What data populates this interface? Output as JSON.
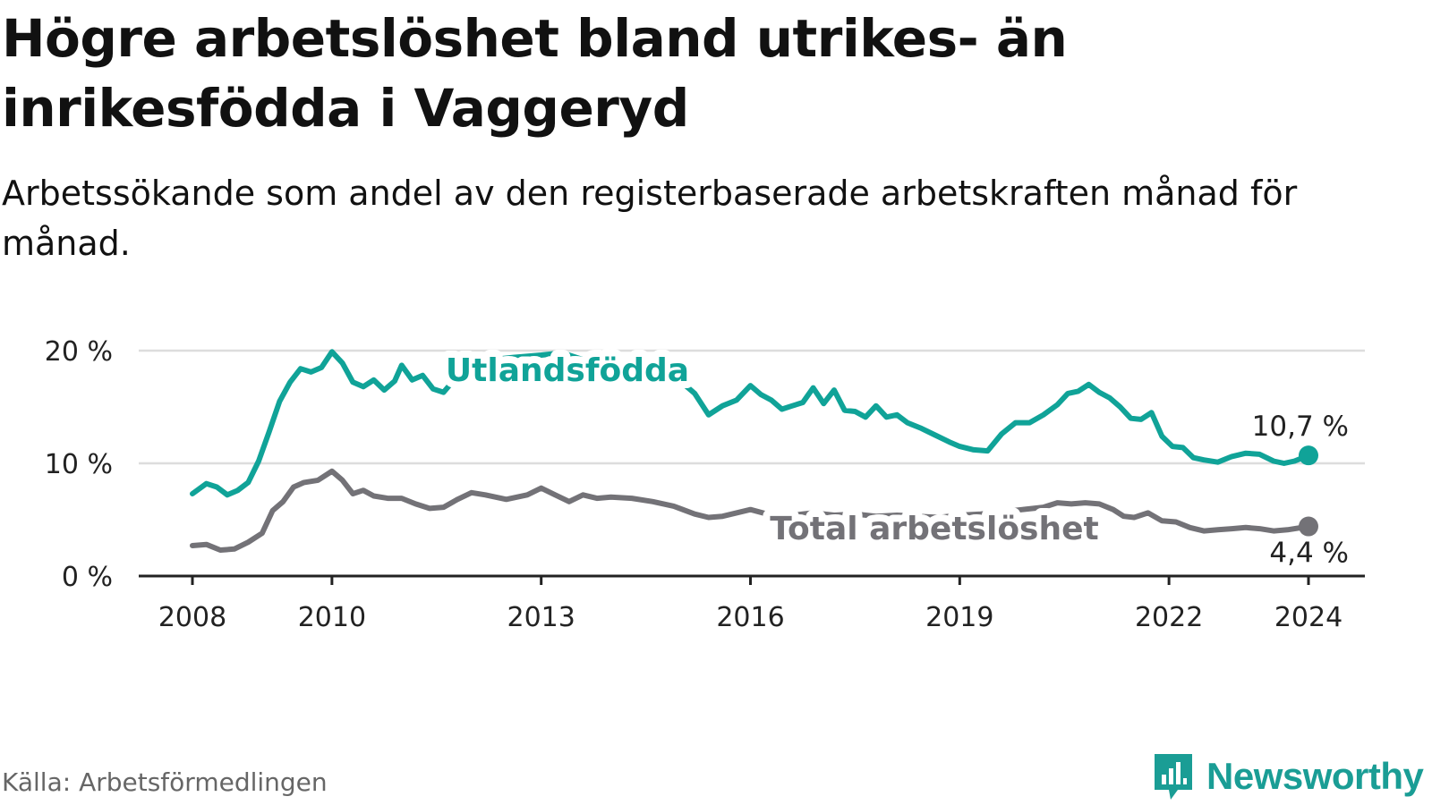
{
  "header": {
    "title": "Högre arbetslöshet bland utrikes- än inrikesfödda i Vaggeryd",
    "subtitle": "Arbetssökande som andel av den registerbaserade arbetskraften månad för månad."
  },
  "footer": {
    "source": "Källa: Arbetsförmedlingen",
    "brand": "Newsworthy"
  },
  "colors": {
    "foreign": "#10a398",
    "total": "#737277",
    "grid": "#dddddd",
    "axis": "#222222",
    "brand": "#1a9d95"
  },
  "icons": {
    "logo": "newsworthy-logo-icon"
  },
  "chart_data": {
    "type": "line",
    "title": "Högre arbetslöshet bland utrikes- än inrikesfödda i Vaggeryd",
    "xlabel": "",
    "ylabel": "",
    "xlim": [
      2008,
      2024
    ],
    "ylim": [
      0,
      20
    ],
    "x_ticks": [
      {
        "value": 2008,
        "label": "2008"
      },
      {
        "value": 2010,
        "label": "2010"
      },
      {
        "value": 2013,
        "label": "2013"
      },
      {
        "value": 2016,
        "label": "2016"
      },
      {
        "value": 2019,
        "label": "2019"
      },
      {
        "value": 2022,
        "label": "2022"
      },
      {
        "value": 2024,
        "label": "2024"
      }
    ],
    "y_ticks": [
      {
        "value": 0,
        "label": "0 %"
      },
      {
        "value": 10,
        "label": "10 %"
      },
      {
        "value": 20,
        "label": "20 %"
      }
    ],
    "grid": true,
    "legend": "inline labels",
    "series": [
      {
        "name": "Utlandsfödda",
        "color": "#10a398",
        "end_label": "10,7 %",
        "points": [
          [
            2008.0,
            7.3
          ],
          [
            2008.2,
            8.2
          ],
          [
            2008.35,
            7.9
          ],
          [
            2008.5,
            7.2
          ],
          [
            2008.65,
            7.6
          ],
          [
            2008.8,
            8.3
          ],
          [
            2008.95,
            10.2
          ],
          [
            2009.1,
            12.8
          ],
          [
            2009.25,
            15.5
          ],
          [
            2009.4,
            17.2
          ],
          [
            2009.55,
            18.4
          ],
          [
            2009.7,
            18.1
          ],
          [
            2009.85,
            18.5
          ],
          [
            2010.0,
            19.9
          ],
          [
            2010.15,
            18.9
          ],
          [
            2010.3,
            17.2
          ],
          [
            2010.45,
            16.8
          ],
          [
            2010.6,
            17.4
          ],
          [
            2010.75,
            16.5
          ],
          [
            2010.9,
            17.3
          ],
          [
            2011.0,
            18.7
          ],
          [
            2011.15,
            17.4
          ],
          [
            2011.3,
            17.8
          ],
          [
            2011.45,
            16.6
          ],
          [
            2011.6,
            16.3
          ],
          [
            2011.75,
            17.4
          ],
          [
            2012.0,
            18.5
          ],
          [
            2012.3,
            19.2
          ],
          [
            2012.6,
            19.4
          ],
          [
            2013.0,
            19.6
          ],
          [
            2013.3,
            19.8
          ],
          [
            2013.6,
            19.2
          ],
          [
            2014.0,
            19.1
          ],
          [
            2014.3,
            18.8
          ],
          [
            2014.6,
            18.5
          ],
          [
            2014.9,
            17.8
          ],
          [
            2015.2,
            16.2
          ],
          [
            2015.4,
            14.3
          ],
          [
            2015.6,
            15.1
          ],
          [
            2015.8,
            15.6
          ],
          [
            2016.0,
            16.9
          ],
          [
            2016.15,
            16.1
          ],
          [
            2016.3,
            15.6
          ],
          [
            2016.45,
            14.8
          ],
          [
            2016.6,
            15.1
          ],
          [
            2016.75,
            15.4
          ],
          [
            2016.9,
            16.7
          ],
          [
            2017.05,
            15.3
          ],
          [
            2017.2,
            16.5
          ],
          [
            2017.35,
            14.7
          ],
          [
            2017.5,
            14.6
          ],
          [
            2017.65,
            14.1
          ],
          [
            2017.8,
            15.1
          ],
          [
            2017.95,
            14.1
          ],
          [
            2018.1,
            14.3
          ],
          [
            2018.25,
            13.6
          ],
          [
            2018.45,
            13.1
          ],
          [
            2018.65,
            12.5
          ],
          [
            2018.85,
            11.9
          ],
          [
            2019.0,
            11.5
          ],
          [
            2019.2,
            11.2
          ],
          [
            2019.4,
            11.1
          ],
          [
            2019.6,
            12.6
          ],
          [
            2019.8,
            13.6
          ],
          [
            2020.0,
            13.6
          ],
          [
            2020.2,
            14.3
          ],
          [
            2020.4,
            15.2
          ],
          [
            2020.55,
            16.2
          ],
          [
            2020.7,
            16.4
          ],
          [
            2020.85,
            17.0
          ],
          [
            2021.0,
            16.3
          ],
          [
            2021.15,
            15.8
          ],
          [
            2021.3,
            15.0
          ],
          [
            2021.45,
            14.0
          ],
          [
            2021.6,
            13.9
          ],
          [
            2021.75,
            14.5
          ],
          [
            2021.9,
            12.4
          ],
          [
            2022.05,
            11.5
          ],
          [
            2022.2,
            11.4
          ],
          [
            2022.35,
            10.5
          ],
          [
            2022.5,
            10.3
          ],
          [
            2022.7,
            10.1
          ],
          [
            2022.9,
            10.6
          ],
          [
            2023.1,
            10.9
          ],
          [
            2023.3,
            10.8
          ],
          [
            2023.5,
            10.2
          ],
          [
            2023.65,
            10.0
          ],
          [
            2023.8,
            10.2
          ],
          [
            2024.0,
            10.7
          ]
        ]
      },
      {
        "name": "Total arbetslöshet",
        "color": "#737277",
        "end_label": "4,4 %",
        "points": [
          [
            2008.0,
            2.7
          ],
          [
            2008.2,
            2.8
          ],
          [
            2008.4,
            2.3
          ],
          [
            2008.6,
            2.4
          ],
          [
            2008.8,
            3.0
          ],
          [
            2009.0,
            3.8
          ],
          [
            2009.15,
            5.8
          ],
          [
            2009.3,
            6.6
          ],
          [
            2009.45,
            7.9
          ],
          [
            2009.6,
            8.3
          ],
          [
            2009.8,
            8.5
          ],
          [
            2010.0,
            9.3
          ],
          [
            2010.15,
            8.5
          ],
          [
            2010.3,
            7.3
          ],
          [
            2010.45,
            7.6
          ],
          [
            2010.6,
            7.1
          ],
          [
            2010.8,
            6.9
          ],
          [
            2011.0,
            6.9
          ],
          [
            2011.2,
            6.4
          ],
          [
            2011.4,
            6.0
          ],
          [
            2011.6,
            6.1
          ],
          [
            2011.8,
            6.8
          ],
          [
            2012.0,
            7.4
          ],
          [
            2012.2,
            7.2
          ],
          [
            2012.5,
            6.8
          ],
          [
            2012.8,
            7.2
          ],
          [
            2013.0,
            7.8
          ],
          [
            2013.2,
            7.2
          ],
          [
            2013.4,
            6.6
          ],
          [
            2013.6,
            7.2
          ],
          [
            2013.8,
            6.9
          ],
          [
            2014.0,
            7.0
          ],
          [
            2014.3,
            6.9
          ],
          [
            2014.6,
            6.6
          ],
          [
            2014.9,
            6.2
          ],
          [
            2015.2,
            5.5
          ],
          [
            2015.4,
            5.2
          ],
          [
            2015.6,
            5.3
          ],
          [
            2015.8,
            5.6
          ],
          [
            2016.0,
            5.9
          ],
          [
            2016.3,
            5.4
          ],
          [
            2016.6,
            5.4
          ],
          [
            2016.9,
            5.6
          ],
          [
            2017.2,
            5.4
          ],
          [
            2017.5,
            5.5
          ],
          [
            2017.8,
            5.3
          ],
          [
            2018.1,
            5.4
          ],
          [
            2018.4,
            5.3
          ],
          [
            2018.7,
            5.2
          ],
          [
            2019.0,
            5.4
          ],
          [
            2019.3,
            5.5
          ],
          [
            2019.6,
            5.7
          ],
          [
            2019.9,
            5.9
          ],
          [
            2020.2,
            6.1
          ],
          [
            2020.4,
            6.5
          ],
          [
            2020.6,
            6.4
          ],
          [
            2020.8,
            6.5
          ],
          [
            2021.0,
            6.4
          ],
          [
            2021.2,
            5.9
          ],
          [
            2021.35,
            5.3
          ],
          [
            2021.5,
            5.2
          ],
          [
            2021.7,
            5.6
          ],
          [
            2021.9,
            4.9
          ],
          [
            2022.1,
            4.8
          ],
          [
            2022.3,
            4.3
          ],
          [
            2022.5,
            4.0
          ],
          [
            2022.7,
            4.1
          ],
          [
            2022.9,
            4.2
          ],
          [
            2023.1,
            4.3
          ],
          [
            2023.3,
            4.2
          ],
          [
            2023.5,
            4.0
          ],
          [
            2023.7,
            4.1
          ],
          [
            2024.0,
            4.4
          ]
        ]
      }
    ]
  }
}
